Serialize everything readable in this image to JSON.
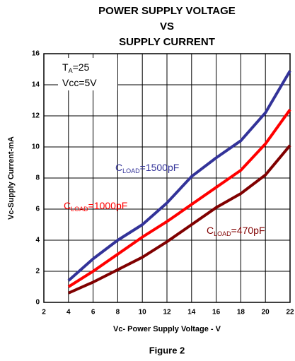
{
  "chart_data": {
    "type": "line",
    "title": [
      "POWER SUPPLY VOLTAGE",
      "VS",
      "SUPPLY CURRENT"
    ],
    "x_label": "Vc- Power Supply Voltage - V",
    "y_label": "Vc-Supply Current-mA",
    "caption": "Figure 2",
    "annotations": [
      [
        "T",
        "A",
        "=25"
      ],
      [
        "Vcc=5V"
      ]
    ],
    "x": [
      4,
      6,
      8,
      10,
      12,
      14,
      16,
      18,
      20,
      22
    ],
    "series": [
      {
        "label_parts": [
          "C",
          "LOAD",
          "=1500pF"
        ],
        "color": "#333399",
        "values": [
          1.4,
          2.8,
          4.0,
          5.0,
          6.4,
          8.1,
          9.3,
          10.4,
          12.2,
          14.9
        ]
      },
      {
        "label_parts": [
          "C",
          "LOAD",
          "=1000pF"
        ],
        "color": "#ff0000",
        "values": [
          1.0,
          2.0,
          3.1,
          4.2,
          5.2,
          6.3,
          7.4,
          8.5,
          10.2,
          12.4
        ]
      },
      {
        "label_parts": [
          "C",
          "LOAD",
          "=470pF"
        ],
        "color": "#800000",
        "values": [
          0.6,
          1.3,
          2.1,
          2.9,
          3.9,
          5.0,
          6.1,
          7.0,
          8.2,
          10.1
        ]
      }
    ],
    "xlim": [
      2,
      22
    ],
    "xticks": [
      2,
      4,
      6,
      8,
      10,
      12,
      14,
      16,
      18,
      20,
      22
    ],
    "ylim": [
      0,
      16
    ],
    "yticks": [
      0,
      2,
      4,
      6,
      8,
      10,
      12,
      14,
      16
    ],
    "grid": true
  }
}
